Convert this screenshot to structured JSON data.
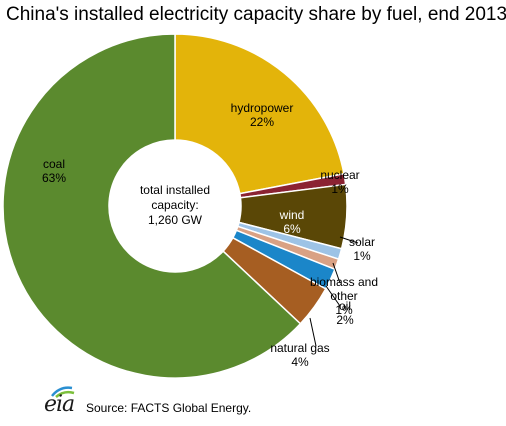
{
  "header": {
    "title": "China's installed electricity capacity share by fuel, end 2013"
  },
  "center_label": {
    "line1": "total installed",
    "line2": "capacity:",
    "line3": "1,260 GW"
  },
  "footer": {
    "logo_text": "eia",
    "source": "Source: FACTS Global Energy."
  },
  "chart_data": {
    "type": "pie",
    "title": "China's installed electricity capacity share by fuel, end 2013",
    "donut": true,
    "total_label": "total installed capacity: 1,260 GW",
    "slices": [
      {
        "name": "hydropower",
        "value": 22,
        "label": "22%",
        "color": "#E3B40A"
      },
      {
        "name": "nuclear",
        "value": 1,
        "label": "1%",
        "color": "#8B2232"
      },
      {
        "name": "wind",
        "value": 6,
        "label": "6%",
        "color": "#5A4706"
      },
      {
        "name": "solar",
        "value": 1,
        "label": "1%",
        "color": "#9DC3E6"
      },
      {
        "name": "biomass and other",
        "value": 1,
        "label": "1%",
        "color": "#D9A184"
      },
      {
        "name": "oil",
        "value": 2,
        "label": "2%",
        "color": "#1B86C9"
      },
      {
        "name": "natural gas",
        "value": 4,
        "label": "4%",
        "color": "#A65E22"
      },
      {
        "name": "coal",
        "value": 63,
        "label": "63%",
        "color": "#5B8A2E"
      }
    ]
  }
}
